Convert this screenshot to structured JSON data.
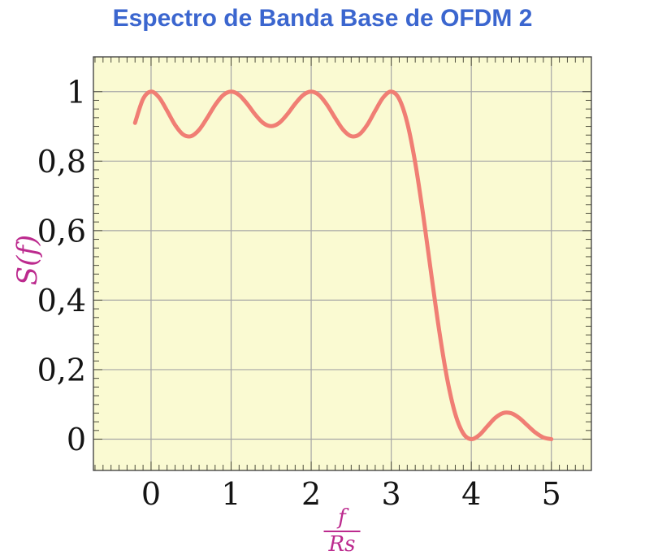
{
  "figure": {
    "title": "Espectro de Banda Base de OFDM 2",
    "title_color": "#3b66cf"
  },
  "labels": {
    "y_axis": "S(f)",
    "x_axis_numerator": "f",
    "x_axis_denominator": "Rs",
    "axis_label_color": "#bc2a8e"
  },
  "chart_data": {
    "type": "line",
    "title": "Espectro de Banda Base de OFDM 2",
    "xlabel": "f/Rs",
    "ylabel": "S(f)",
    "xlim": [
      -0.72,
      5.5
    ],
    "ylim": [
      -0.09,
      1.1
    ],
    "grid": true,
    "legend_position": "none",
    "plot_background": "#fafad2",
    "grid_color": "#a6a6a6",
    "frame_color": "#3a3a3a",
    "tick_color": "#4d4d3c",
    "tick_label_color": "#141414",
    "x_tick_values": [
      0,
      1,
      2,
      3,
      4,
      5
    ],
    "x_tick_labels": [
      "0",
      "1",
      "2",
      "3",
      "4",
      "5"
    ],
    "y_tick_values": [
      0,
      0.2,
      0.4,
      0.6,
      0.8,
      1
    ],
    "y_tick_labels": [
      "0",
      "0,2",
      "0,4",
      "0,6",
      "0,8",
      "1"
    ],
    "minor_x_step": 0.1,
    "minor_y_step": 0.025,
    "minor_y_range": [
      0,
      1
    ],
    "series": [
      {
        "name": "S(f)",
        "color": "#f07e74",
        "line_width": 5,
        "x": [
          -0.2,
          -0.1,
          0.0,
          0.1,
          0.2,
          0.3,
          0.4,
          0.5,
          0.6,
          0.7,
          0.8,
          0.9,
          1.0,
          1.1,
          1.2,
          1.3,
          1.4,
          1.5,
          1.6,
          1.7,
          1.8,
          1.9,
          2.0,
          2.1,
          2.2,
          2.3,
          2.4,
          2.5,
          2.6,
          2.7,
          2.8,
          2.9,
          3.0,
          3.1,
          3.2,
          3.3,
          3.4,
          3.5,
          3.6,
          3.7,
          3.8,
          3.9,
          4.0,
          4.1,
          4.2,
          4.3,
          4.4,
          4.5,
          4.6,
          4.7,
          4.8,
          4.9,
          5.0
        ],
        "y": [
          0.9101,
          0.9787,
          1.0,
          0.9833,
          0.9451,
          0.9042,
          0.8767,
          0.8718,
          0.89,
          0.924,
          0.9614,
          0.9897,
          1.0,
          0.9902,
          0.965,
          0.9344,
          0.9099,
          0.9006,
          0.9099,
          0.9344,
          0.965,
          0.9902,
          1.0,
          0.9897,
          0.9614,
          0.924,
          0.89,
          0.8718,
          0.8767,
          0.9042,
          0.9451,
          0.9833,
          1.0,
          0.9787,
          0.9101,
          0.7947,
          0.6434,
          0.4748,
          0.311,
          0.1722,
          0.0724,
          0.0164,
          0.0,
          0.0118,
          0.0369,
          0.0615,
          0.0753,
          0.0745,
          0.0608,
          0.0399,
          0.0192,
          0.0049,
          0.0
        ]
      }
    ]
  }
}
